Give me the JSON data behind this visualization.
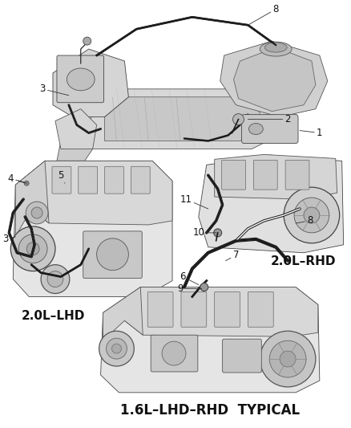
{
  "bg_color": "#ffffff",
  "labels": {
    "mid_left_label": "2.0L–LHD",
    "mid_right_label": "2.0L–RHD",
    "bottom_label": "1.6L–LHD–RHD  TYPICAL"
  },
  "font_size_labels": 11,
  "font_size_numbers": 8.5,
  "annotation_color": "#111111",
  "line_color": "#2a2a2a",
  "engine_light": "#e8e8e8",
  "engine_mid": "#d0d0d0",
  "engine_dark": "#b0b0b0",
  "hose_color": "#1a1a1a",
  "text_color": "#111111"
}
